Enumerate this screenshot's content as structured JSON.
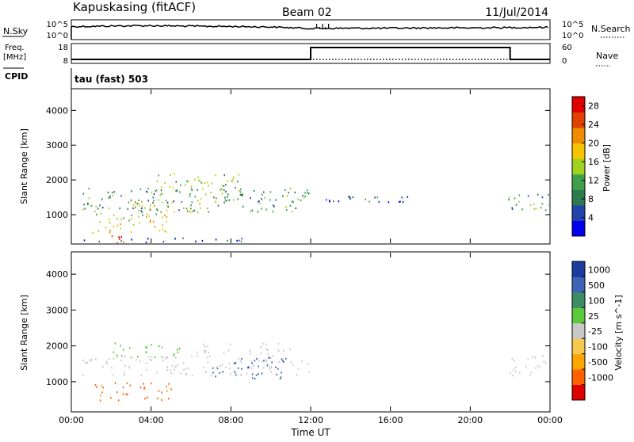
{
  "header": {
    "station": "Kapuskasing (fitACF)",
    "beam": "Beam 02",
    "date": "11/Jul/2014"
  },
  "strip_panels": {
    "nsky_label": "N.Sky",
    "nsky_ticks": [
      "10^5",
      "10^0"
    ],
    "nsearch_label": "N.Search",
    "nsearch_ticks": [
      "10^5",
      "10^0"
    ],
    "freq_label": "Freq.",
    "freq_unit": "[MHz]",
    "freq_ticks": [
      "18",
      "8"
    ],
    "nave_label": "Nave",
    "nave_ticks": [
      "60",
      "0"
    ],
    "cpid_label": "CPID",
    "cpid_value": "tau (fast) 503"
  },
  "colors": {
    "power": [
      "#0000ee",
      "#2244aa",
      "#2c7a4e",
      "#3fa04a",
      "#a0d020",
      "#f5c400",
      "#f08c00",
      "#e04000",
      "#e00000"
    ],
    "velocity": [
      "#e00000",
      "#ff6000",
      "#ffa500",
      "#f6c850",
      "#c8c8c8",
      "#5cc83c",
      "#3c8c64",
      "#3c64b4",
      "#1e3ca0"
    ]
  },
  "chart_data": [
    {
      "type": "heatmap",
      "panel": "power",
      "xlabel": "",
      "ylabel": "Slant Range [km]",
      "x_ticks": [
        "00:00",
        "04:00",
        "08:00",
        "12:00",
        "16:00",
        "20:00",
        "00:00"
      ],
      "xlim_hours": [
        0,
        24
      ],
      "y_ticks": [
        1000,
        2000,
        3000,
        4000
      ],
      "ylim_km": [
        180,
        4600
      ],
      "colorbar_label": "Power [dB]",
      "colorbar_ticks": [
        "4",
        "8",
        "12",
        "16",
        "20",
        "24",
        "28"
      ],
      "colorbar_range": [
        0,
        30
      ],
      "echo_regions": [
        {
          "t0": 0.5,
          "t1": 11.9,
          "r0": 1100,
          "r1": 1800,
          "value": 10
        },
        {
          "t0": 1.0,
          "t1": 5.0,
          "r0": 500,
          "r1": 1100,
          "value": 18
        },
        {
          "t0": 1.5,
          "t1": 3.0,
          "r0": 200,
          "r1": 450,
          "value": 27
        },
        {
          "t0": 3.0,
          "t1": 7.5,
          "r0": 1000,
          "r1": 1500,
          "value": 16
        },
        {
          "t0": 4.0,
          "t1": 8.5,
          "r0": 1600,
          "r1": 2200,
          "value": 14
        },
        {
          "t0": 0.6,
          "t1": 9.0,
          "r0": 220,
          "r1": 350,
          "value": 6
        },
        {
          "t0": 12.5,
          "t1": 17.5,
          "r0": 1300,
          "r1": 1550,
          "value": 6
        },
        {
          "t0": 21.9,
          "t1": 24.0,
          "r0": 1150,
          "r1": 1750,
          "value": 10
        }
      ]
    },
    {
      "type": "heatmap",
      "panel": "velocity",
      "xlabel": "Time UT",
      "ylabel": "Slant Range [km]",
      "x_ticks": [
        "00:00",
        "04:00",
        "08:00",
        "12:00",
        "16:00",
        "20:00",
        "00:00"
      ],
      "xlim_hours": [
        0,
        24
      ],
      "y_ticks": [
        1000,
        2000,
        3000,
        4000
      ],
      "ylim_km": [
        180,
        4600
      ],
      "colorbar_label": "Velocity [m s^-1]",
      "colorbar_ticks": [
        "1000",
        "500",
        "100",
        "25",
        "-25",
        "-100",
        "-500",
        "-1000"
      ],
      "echo_regions": [
        {
          "t0": 0.5,
          "t1": 11.9,
          "r0": 1200,
          "r1": 1750,
          "value": 0
        },
        {
          "t0": 6.0,
          "t1": 11.0,
          "r0": 1800,
          "r1": 2100,
          "value": 0
        },
        {
          "t0": 1.0,
          "t1": 5.0,
          "r0": 500,
          "r1": 1000,
          "value": -150
        },
        {
          "t0": 2.0,
          "t1": 5.5,
          "r0": 1700,
          "r1": 2100,
          "value": 60
        },
        {
          "t0": 7.0,
          "t1": 11.0,
          "r0": 1100,
          "r1": 1700,
          "value": 700
        },
        {
          "t0": 21.9,
          "t1": 24.0,
          "r0": 1150,
          "r1": 1750,
          "value": 0
        }
      ]
    }
  ],
  "timeseries": {
    "nsky_hours": [
      0,
      2,
      4,
      6,
      8,
      10,
      12,
      14,
      16,
      18,
      20,
      22,
      24
    ],
    "nsky_level": [
      0.82,
      0.86,
      0.88,
      0.85,
      0.83,
      0.8,
      0.7,
      0.72,
      0.72,
      0.74,
      0.74,
      0.76,
      0.78
    ],
    "freq_steps": [
      {
        "t0": 0,
        "t1": 12,
        "value": 10
      },
      {
        "t0": 12,
        "t1": 22,
        "value": 16
      },
      {
        "t0": 22,
        "t1": 24,
        "value": 10
      }
    ]
  }
}
